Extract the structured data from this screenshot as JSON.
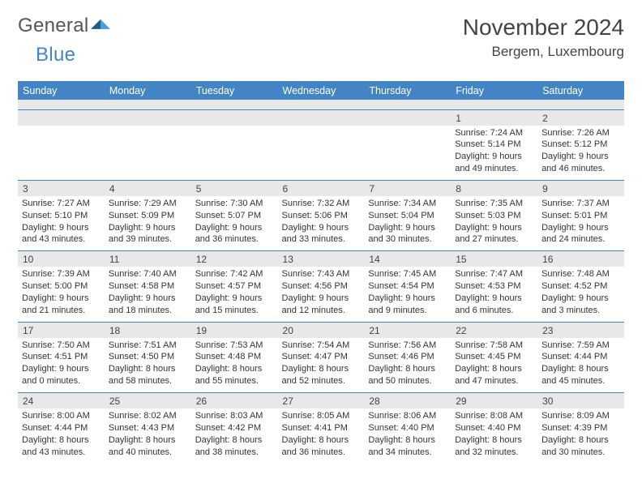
{
  "brand": {
    "name1": "General",
    "name2": "Blue"
  },
  "title": "November 2024",
  "location": "Bergem, Luxembourg",
  "colors": {
    "header_bg": "#4384c4",
    "header_text": "#ffffff",
    "daynum_bg": "#e8e8e8",
    "text": "#333333",
    "rule": "#4384c4"
  },
  "dow": [
    "Sunday",
    "Monday",
    "Tuesday",
    "Wednesday",
    "Thursday",
    "Friday",
    "Saturday"
  ],
  "weeks": [
    [
      null,
      null,
      null,
      null,
      null,
      {
        "n": "1",
        "sr": "7:24 AM",
        "ss": "5:14 PM",
        "dl": "9 hours and 49 minutes."
      },
      {
        "n": "2",
        "sr": "7:26 AM",
        "ss": "5:12 PM",
        "dl": "9 hours and 46 minutes."
      }
    ],
    [
      {
        "n": "3",
        "sr": "7:27 AM",
        "ss": "5:10 PM",
        "dl": "9 hours and 43 minutes."
      },
      {
        "n": "4",
        "sr": "7:29 AM",
        "ss": "5:09 PM",
        "dl": "9 hours and 39 minutes."
      },
      {
        "n": "5",
        "sr": "7:30 AM",
        "ss": "5:07 PM",
        "dl": "9 hours and 36 minutes."
      },
      {
        "n": "6",
        "sr": "7:32 AM",
        "ss": "5:06 PM",
        "dl": "9 hours and 33 minutes."
      },
      {
        "n": "7",
        "sr": "7:34 AM",
        "ss": "5:04 PM",
        "dl": "9 hours and 30 minutes."
      },
      {
        "n": "8",
        "sr": "7:35 AM",
        "ss": "5:03 PM",
        "dl": "9 hours and 27 minutes."
      },
      {
        "n": "9",
        "sr": "7:37 AM",
        "ss": "5:01 PM",
        "dl": "9 hours and 24 minutes."
      }
    ],
    [
      {
        "n": "10",
        "sr": "7:39 AM",
        "ss": "5:00 PM",
        "dl": "9 hours and 21 minutes."
      },
      {
        "n": "11",
        "sr": "7:40 AM",
        "ss": "4:58 PM",
        "dl": "9 hours and 18 minutes."
      },
      {
        "n": "12",
        "sr": "7:42 AM",
        "ss": "4:57 PM",
        "dl": "9 hours and 15 minutes."
      },
      {
        "n": "13",
        "sr": "7:43 AM",
        "ss": "4:56 PM",
        "dl": "9 hours and 12 minutes."
      },
      {
        "n": "14",
        "sr": "7:45 AM",
        "ss": "4:54 PM",
        "dl": "9 hours and 9 minutes."
      },
      {
        "n": "15",
        "sr": "7:47 AM",
        "ss": "4:53 PM",
        "dl": "9 hours and 6 minutes."
      },
      {
        "n": "16",
        "sr": "7:48 AM",
        "ss": "4:52 PM",
        "dl": "9 hours and 3 minutes."
      }
    ],
    [
      {
        "n": "17",
        "sr": "7:50 AM",
        "ss": "4:51 PM",
        "dl": "9 hours and 0 minutes."
      },
      {
        "n": "18",
        "sr": "7:51 AM",
        "ss": "4:50 PM",
        "dl": "8 hours and 58 minutes."
      },
      {
        "n": "19",
        "sr": "7:53 AM",
        "ss": "4:48 PM",
        "dl": "8 hours and 55 minutes."
      },
      {
        "n": "20",
        "sr": "7:54 AM",
        "ss": "4:47 PM",
        "dl": "8 hours and 52 minutes."
      },
      {
        "n": "21",
        "sr": "7:56 AM",
        "ss": "4:46 PM",
        "dl": "8 hours and 50 minutes."
      },
      {
        "n": "22",
        "sr": "7:58 AM",
        "ss": "4:45 PM",
        "dl": "8 hours and 47 minutes."
      },
      {
        "n": "23",
        "sr": "7:59 AM",
        "ss": "4:44 PM",
        "dl": "8 hours and 45 minutes."
      }
    ],
    [
      {
        "n": "24",
        "sr": "8:00 AM",
        "ss": "4:44 PM",
        "dl": "8 hours and 43 minutes."
      },
      {
        "n": "25",
        "sr": "8:02 AM",
        "ss": "4:43 PM",
        "dl": "8 hours and 40 minutes."
      },
      {
        "n": "26",
        "sr": "8:03 AM",
        "ss": "4:42 PM",
        "dl": "8 hours and 38 minutes."
      },
      {
        "n": "27",
        "sr": "8:05 AM",
        "ss": "4:41 PM",
        "dl": "8 hours and 36 minutes."
      },
      {
        "n": "28",
        "sr": "8:06 AM",
        "ss": "4:40 PM",
        "dl": "8 hours and 34 minutes."
      },
      {
        "n": "29",
        "sr": "8:08 AM",
        "ss": "4:40 PM",
        "dl": "8 hours and 32 minutes."
      },
      {
        "n": "30",
        "sr": "8:09 AM",
        "ss": "4:39 PM",
        "dl": "8 hours and 30 minutes."
      }
    ]
  ],
  "labels": {
    "sunrise": "Sunrise: ",
    "sunset": "Sunset: ",
    "daylight": "Daylight: "
  }
}
